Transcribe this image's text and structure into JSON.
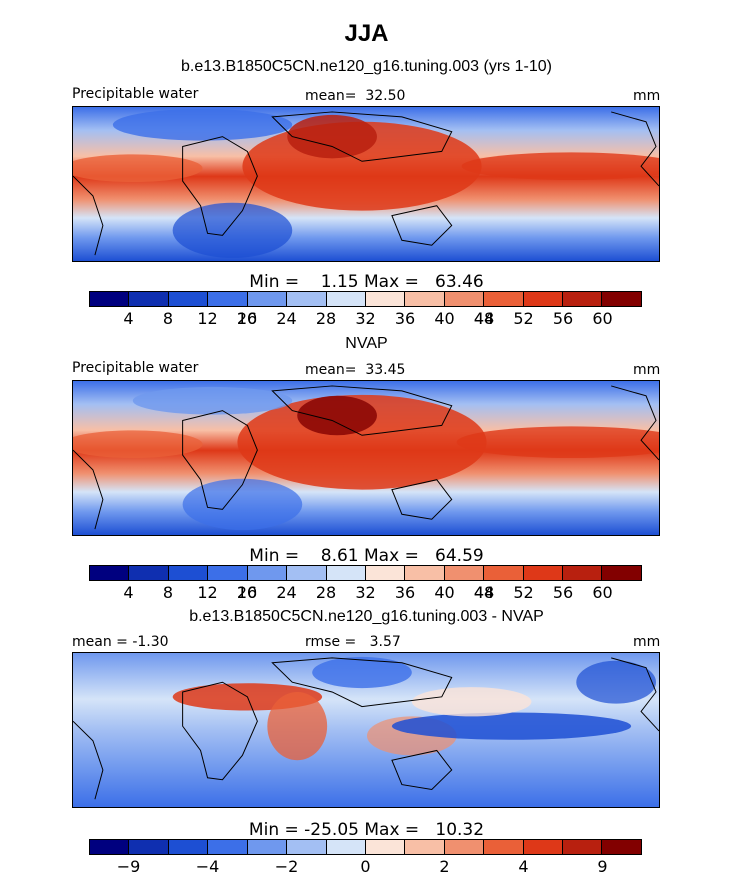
{
  "title": "JJA",
  "colors": {
    "field_scale": [
      "#00007f",
      "#0f2fb0",
      "#1d4fd3",
      "#3c6fe8",
      "#6f98ee",
      "#a3bff3",
      "#d5e4f8",
      "#fbe4d8",
      "#f8bfa6",
      "#f0906f",
      "#ea6038",
      "#de3818",
      "#b8200f",
      "#820000"
    ],
    "diff_scale": [
      "#00007f",
      "#0f2fb0",
      "#1d4fd3",
      "#3c6fe8",
      "#6f98ee",
      "#a3bff3",
      "#d5e4f8",
      "#fbe4d8",
      "#f8bfa6",
      "#f0906f",
      "#ea6038",
      "#de3818",
      "#b8200f",
      "#820000"
    ],
    "coast": "#000000"
  },
  "chart_data": [
    {
      "type": "heatmap",
      "title": "b.e13.B1850C5CN.ne120_g16.tuning.003 (yrs 1-10)",
      "variable": "Precipitable water",
      "units": "mm",
      "mean_label": "mean=",
      "mean": "32.50",
      "min_label": "Min =",
      "min": "1.15",
      "max_label": "Max =",
      "max": "63.46",
      "colorbar_labels": [
        "4",
        "8",
        "12",
        "16",
        "20",
        "24",
        "28",
        "32",
        "36",
        "40",
        "44",
        "48",
        "52",
        "56",
        "60"
      ],
      "grid": false
    },
    {
      "type": "heatmap",
      "title": "NVAP",
      "variable": "Precipitable water",
      "units": "mm",
      "mean_label": "mean=",
      "mean": "33.45",
      "min_label": "Min =",
      "min": "8.61",
      "max_label": "Max =",
      "max": "64.59",
      "colorbar_labels": [
        "4",
        "8",
        "12",
        "16",
        "20",
        "24",
        "28",
        "32",
        "36",
        "40",
        "44",
        "48",
        "52",
        "56",
        "60"
      ],
      "grid": false
    },
    {
      "type": "heatmap",
      "title": "b.e13.B1850C5CN.ne120_g16.tuning.003 - NVAP",
      "units": "mm",
      "mean_label": "mean =",
      "mean": "-1.30",
      "rmse_label": "rmse =",
      "rmse": "3.57",
      "min_label": "Min =",
      "min": "-25.05",
      "max_label": "Max =",
      "max": "10.32",
      "colorbar_labels": [
        "-9",
        "-4",
        "-2",
        "0",
        "2",
        "4",
        "9"
      ],
      "grid": false
    }
  ]
}
